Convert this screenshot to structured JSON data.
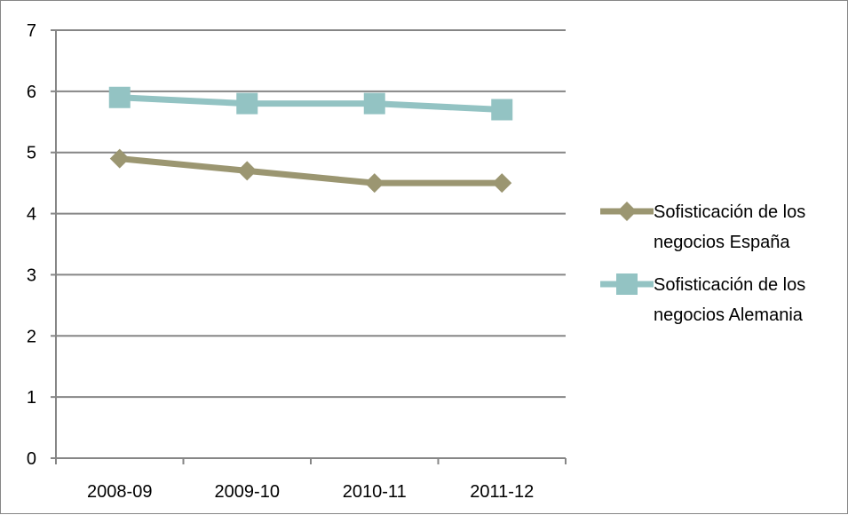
{
  "chart_data": {
    "type": "line",
    "categories": [
      "2008-09",
      "2009-10",
      "2010-11",
      "2011-12"
    ],
    "ylim": [
      0,
      7
    ],
    "yticks": [
      0,
      1,
      2,
      3,
      4,
      5,
      6,
      7
    ],
    "grid": true,
    "legend_position": "right",
    "series": [
      {
        "name_lines": [
          "Sofisticación de los",
          "negocios España"
        ],
        "values": [
          4.9,
          4.7,
          4.5,
          4.5
        ],
        "color": "#9B9671",
        "marker": "diamond"
      },
      {
        "name_lines": [
          "Sofisticación de los",
          "negocios Alemania"
        ],
        "values": [
          5.9,
          5.8,
          5.8,
          5.7
        ],
        "color": "#93C3C3",
        "marker": "square"
      }
    ]
  }
}
